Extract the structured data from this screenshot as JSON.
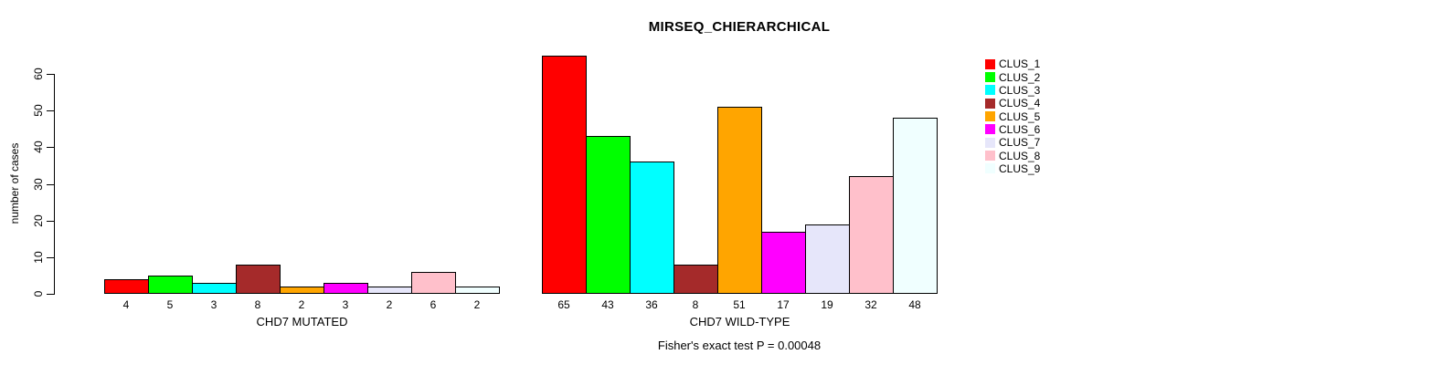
{
  "title": "MIRSEQ_CHIERARCHICAL",
  "footer": "Fisher's exact test P = 0.00048",
  "chart_data": {
    "type": "bar",
    "title": "MIRSEQ_CHIERARCHICAL",
    "xlabel": "",
    "ylabel": "number of cases",
    "ylim": [
      0,
      60
    ],
    "yticks": [
      0,
      10,
      20,
      30,
      40,
      50,
      60
    ],
    "grid": false,
    "legend_position": "right",
    "bar_border_color": "#000000",
    "annotation": "Fisher's exact test P = 0.00048",
    "clusters": [
      {
        "name": "CLUS_1",
        "color": "#FF0000"
      },
      {
        "name": "CLUS_2",
        "color": "#00FF00"
      },
      {
        "name": "CLUS_3",
        "color": "#00FFFF"
      },
      {
        "name": "CLUS_4",
        "color": "#A52A2A"
      },
      {
        "name": "CLUS_5",
        "color": "#FFA500"
      },
      {
        "name": "CLUS_6",
        "color": "#FF00FF"
      },
      {
        "name": "CLUS_7",
        "color": "#E6E6FA"
      },
      {
        "name": "CLUS_8",
        "color": "#FFC0CB"
      },
      {
        "name": "CLUS_9",
        "color": "#F0FFFF"
      }
    ],
    "groups": [
      {
        "label": "CHD7 MUTATED",
        "values": [
          4,
          5,
          3,
          8,
          2,
          3,
          2,
          6,
          2
        ]
      },
      {
        "label": "CHD7 WILD-TYPE",
        "values": [
          65,
          43,
          36,
          8,
          51,
          17,
          19,
          32,
          48
        ]
      }
    ]
  }
}
